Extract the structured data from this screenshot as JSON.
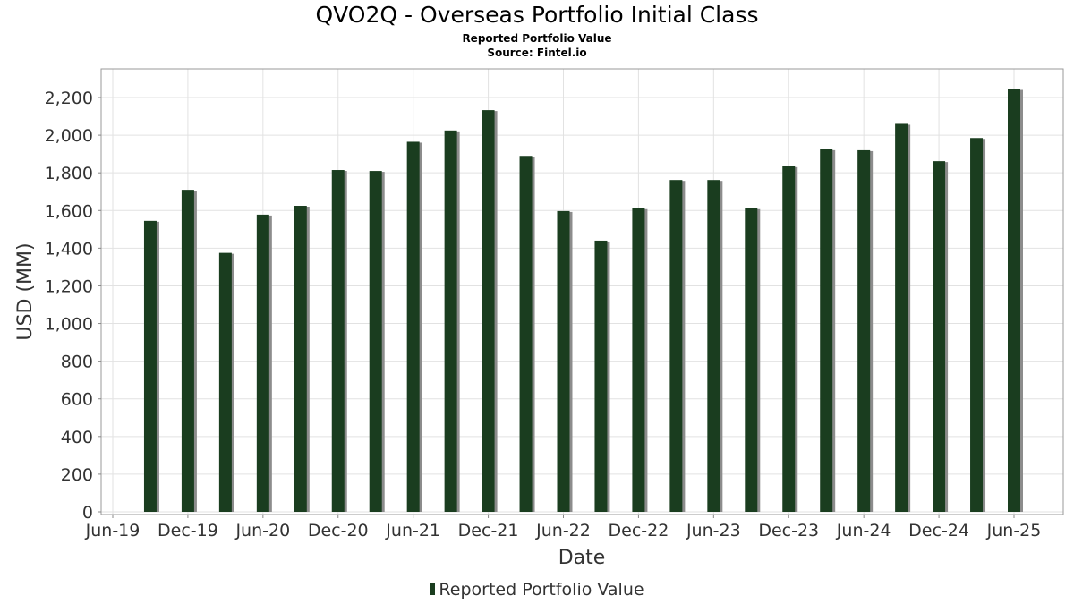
{
  "header": {
    "title": "QVO2Q - Overseas Portfolio Initial Class",
    "subtitle": "Reported Portfolio Value",
    "source": "Source: Fintel.io"
  },
  "chart_data": {
    "type": "bar",
    "title": "QVO2Q - Overseas Portfolio Initial Class",
    "subtitle": "Reported Portfolio Value",
    "xlabel": "Date",
    "ylabel": "USD (MM)",
    "ylim": [
      0,
      2300
    ],
    "y_ticks": [
      0,
      200,
      400,
      600,
      800,
      1000,
      1200,
      1400,
      1600,
      1800,
      2000,
      2200
    ],
    "y_tick_labels": [
      "0",
      "200",
      "400",
      "600",
      "800",
      "1,000",
      "1,200",
      "1,400",
      "1,600",
      "1,800",
      "2,000",
      "2,200"
    ],
    "x_tick_labels": [
      "Jun-19",
      "Dec-19",
      "Jun-20",
      "Dec-20",
      "Jun-21",
      "Dec-21",
      "Jun-22",
      "Dec-22",
      "Jun-23",
      "Dec-23",
      "Jun-24",
      "Dec-24",
      "Jun-25"
    ],
    "grid": true,
    "legend_position": "bottom",
    "series": [
      {
        "name": "Reported Portfolio Value",
        "color": "#1a3d1f",
        "points": [
          {
            "x": "Sep-19",
            "y": 1545
          },
          {
            "x": "Dec-19",
            "y": 1710
          },
          {
            "x": "Mar-20",
            "y": 1375
          },
          {
            "x": "Jun-20",
            "y": 1578
          },
          {
            "x": "Sep-20",
            "y": 1625
          },
          {
            "x": "Dec-20",
            "y": 1815
          },
          {
            "x": "Mar-21",
            "y": 1810
          },
          {
            "x": "Jun-21",
            "y": 1965
          },
          {
            "x": "Sep-21",
            "y": 2025
          },
          {
            "x": "Dec-21",
            "y": 2133
          },
          {
            "x": "Mar-22",
            "y": 1890
          },
          {
            "x": "Jun-22",
            "y": 1597
          },
          {
            "x": "Sep-22",
            "y": 1440
          },
          {
            "x": "Dec-22",
            "y": 1612
          },
          {
            "x": "Mar-23",
            "y": 1762
          },
          {
            "x": "Jun-23",
            "y": 1762
          },
          {
            "x": "Sep-23",
            "y": 1612
          },
          {
            "x": "Dec-23",
            "y": 1835
          },
          {
            "x": "Mar-24",
            "y": 1925
          },
          {
            "x": "Jun-24",
            "y": 1920
          },
          {
            "x": "Sep-24",
            "y": 2060
          },
          {
            "x": "Dec-24",
            "y": 1862
          },
          {
            "x": "Mar-25",
            "y": 1985
          },
          {
            "x": "Jun-25",
            "y": 2245
          }
        ]
      }
    ]
  }
}
